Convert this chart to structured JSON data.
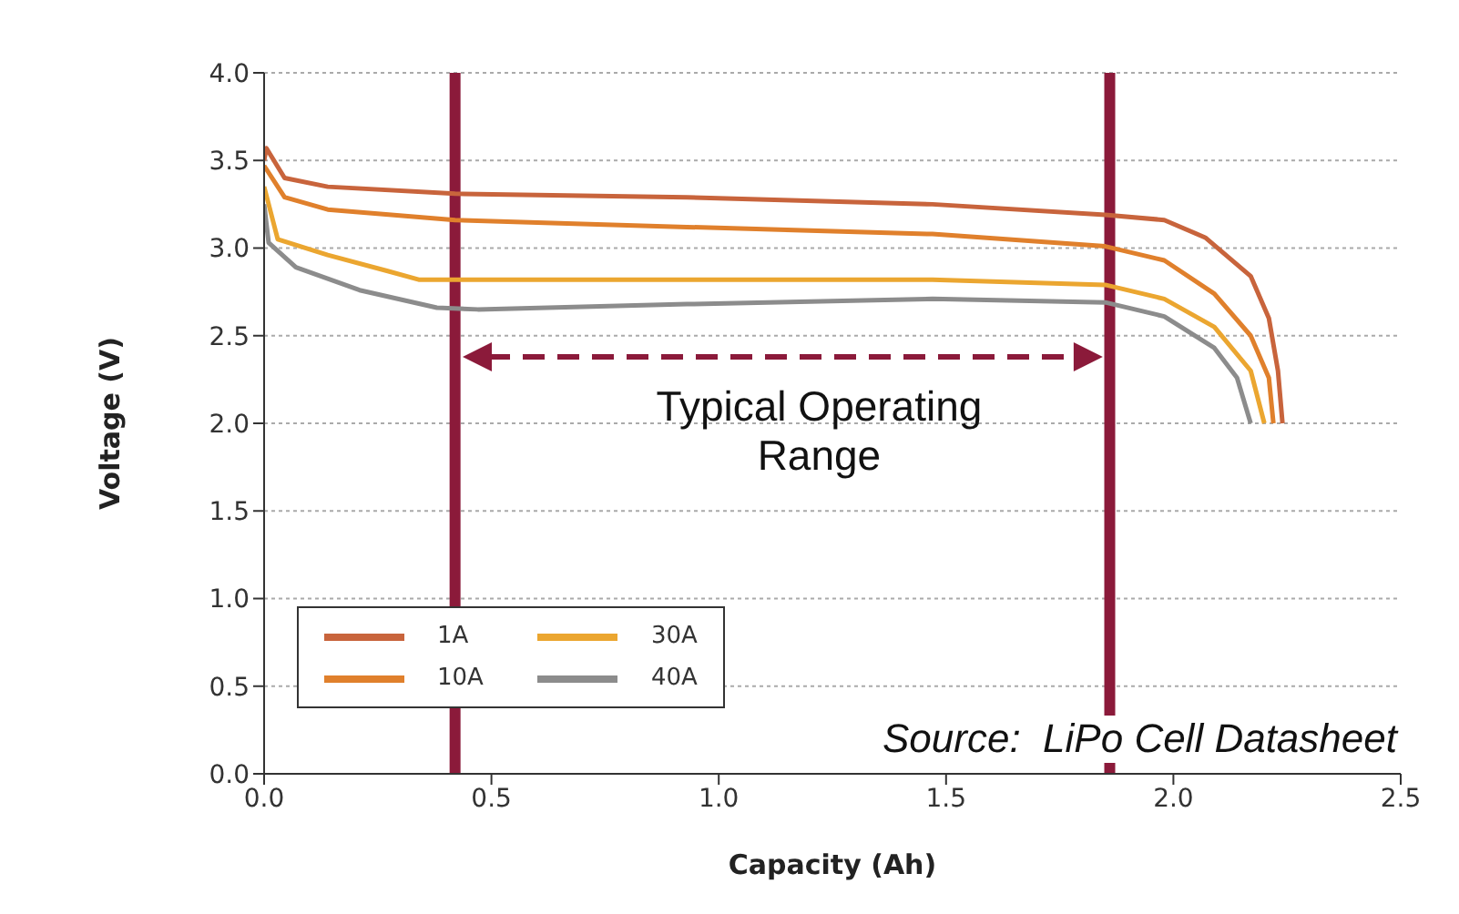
{
  "chart_data": {
    "type": "line",
    "xlabel": "Capacity (Ah)",
    "ylabel": "Voltage (V)",
    "series": [
      {
        "name": "1A",
        "color": "#c8643c",
        "x": [
          0,
          0.005,
          0.045,
          0.14,
          0.42,
          0.93,
          1.47,
          1.85,
          1.98,
          2.07,
          2.17,
          2.21,
          2.23,
          2.24
        ],
        "values": [
          3.5,
          3.57,
          3.4,
          3.35,
          3.31,
          3.29,
          3.25,
          3.19,
          3.16,
          3.06,
          2.84,
          2.6,
          2.3,
          2.0
        ]
      },
      {
        "name": "10A",
        "color": "#e0802c",
        "x": [
          0,
          0.045,
          0.14,
          0.42,
          0.93,
          1.47,
          1.85,
          1.98,
          2.09,
          2.17,
          2.21,
          2.22
        ],
        "values": [
          3.47,
          3.29,
          3.22,
          3.16,
          3.12,
          3.08,
          3.01,
          2.93,
          2.74,
          2.5,
          2.26,
          2.0
        ]
      },
      {
        "name": "30A",
        "color": "#eba630",
        "x": [
          0,
          0.03,
          0.14,
          0.27,
          0.34,
          0.42,
          0.93,
          1.47,
          1.85,
          1.98,
          2.09,
          2.17,
          2.2
        ],
        "values": [
          3.35,
          3.05,
          2.96,
          2.87,
          2.82,
          2.82,
          2.82,
          2.82,
          2.79,
          2.71,
          2.55,
          2.3,
          2.0
        ]
      },
      {
        "name": "40A",
        "color": "#8c8c8c",
        "x": [
          0,
          0.01,
          0.07,
          0.21,
          0.38,
          0.47,
          0.93,
          1.47,
          1.85,
          1.98,
          2.09,
          2.14,
          2.17
        ],
        "values": [
          3.25,
          3.03,
          2.89,
          2.76,
          2.66,
          2.65,
          2.68,
          2.71,
          2.69,
          2.61,
          2.43,
          2.26,
          2.0
        ]
      }
    ],
    "xlim": [
      0,
      2.5
    ],
    "xticks": [
      {
        "value": 0,
        "label": "0.0"
      },
      {
        "value": 0.5,
        "label": "0.5"
      },
      {
        "value": 1,
        "label": "1.0"
      },
      {
        "value": 1.5,
        "label": "1.5"
      },
      {
        "value": 2,
        "label": "2.0"
      },
      {
        "value": 2.5,
        "label": "2.5"
      }
    ],
    "ylim": [
      0,
      4
    ],
    "yticks": [
      {
        "value": 0,
        "label": "0.0"
      },
      {
        "value": 0.5,
        "label": "0.5"
      },
      {
        "value": 1,
        "label": "1.0"
      },
      {
        "value": 1.5,
        "label": "1.5"
      },
      {
        "value": 2,
        "label": "2.0"
      },
      {
        "value": 2.5,
        "label": "2.5"
      },
      {
        "value": 3,
        "label": "3.0"
      },
      {
        "value": 3.5,
        "label": "3.5"
      },
      {
        "value": 4,
        "label": "4.0"
      }
    ],
    "ref_lines": [
      {
        "axis": "x",
        "value": 0.42,
        "color": "#8b1a3a"
      },
      {
        "axis": "x",
        "value": 1.86,
        "color": "#8b1a3a"
      }
    ],
    "annotations": [
      "Typical Operating Range",
      "Source:  LiPo Cell Datasheet"
    ],
    "grid": "y",
    "legend": "bottom left",
    "marker": "none",
    "line_style": "solid"
  }
}
